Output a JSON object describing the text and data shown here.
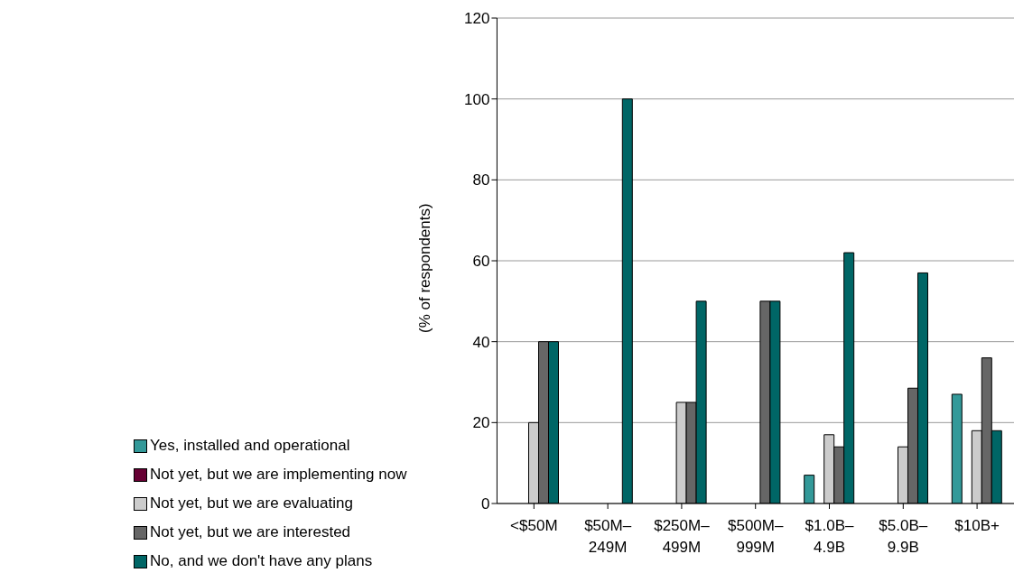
{
  "chart_data": {
    "type": "bar",
    "ylabel": "(% of respondents)",
    "categories": [
      "<$50M",
      "$50M–249M",
      "$250M–499M",
      "$500M–999M",
      "$1.0B–4.9B",
      "$5.0B–9.9B",
      "$10B+"
    ],
    "series": [
      {
        "name": "Yes, installed and operational",
        "color": "#339999",
        "values": [
          0,
          0,
          0,
          0,
          7,
          0,
          27
        ]
      },
      {
        "name": "Not yet, but we are implementing now",
        "color": "#660033",
        "values": [
          0,
          0,
          0,
          0,
          0,
          0,
          0
        ]
      },
      {
        "name": "Not yet, but we are evaluating",
        "color": "#cccccc",
        "values": [
          20,
          0,
          25,
          0,
          17,
          14,
          18
        ]
      },
      {
        "name": "Not yet, but we are interested",
        "color": "#666666",
        "values": [
          40,
          0,
          25,
          50,
          14,
          28.5,
          36
        ]
      },
      {
        "name": "No, and we don't have any plans",
        "color": "#006666",
        "values": [
          40,
          100,
          50,
          50,
          62,
          57,
          18
        ]
      }
    ],
    "ylim": [
      0,
      120
    ],
    "yticks": [
      0,
      20,
      40,
      60,
      80,
      100,
      120
    ],
    "grid": "y",
    "legend": "bottom"
  }
}
